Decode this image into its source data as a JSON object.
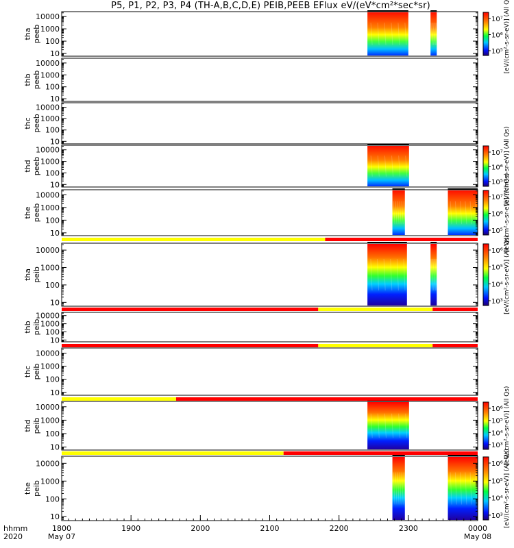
{
  "title": "P5, P1, P2, P3, P4 (TH-A,B,C,D,E) PEIB,PEEB EFlux eV/(eV*cm²*sec*sr)",
  "chart_data": {
    "type": "heatmap",
    "title": "P5, P1, P2, P3, P4 (TH-A,B,C,D,E) PEIB,PEEB EFlux eV/(eV*cm²*sec*sr)",
    "x_axis": {
      "range": [
        "1800",
        "0000"
      ],
      "ticks": [
        "1800",
        "1900",
        "2000",
        "2100",
        "2200",
        "2300",
        "0000"
      ],
      "date_labels": [
        {
          "at": "1800",
          "text": "May 07"
        },
        {
          "at": "0000",
          "text": "May 08"
        }
      ],
      "corner_labels": [
        "hhmm",
        "2020"
      ]
    },
    "y_ticks": [
      "10",
      "100",
      "1000",
      "10000"
    ],
    "y_scale": "log",
    "panels": [
      {
        "label": [
          "tha",
          "peeb"
        ],
        "segments": [
          [
            "2241",
            "2300"
          ],
          [
            "2332",
            "2341"
          ]
        ],
        "colorbar": {
          "ticks": [
            "10⁷",
            "10⁶",
            "10⁵"
          ],
          "label": "[eV/(cm²-s-sr-eV)] (All Qs)"
        }
      },
      {
        "label": [
          "thb",
          "peeb"
        ],
        "segments": []
      },
      {
        "label": [
          "thc",
          "peeb"
        ],
        "segments": []
      },
      {
        "label": [
          "thd",
          "peeb"
        ],
        "segments": [
          [
            "2241",
            "2301"
          ]
        ],
        "colorbar": {
          "ticks": [
            "10⁷",
            "10⁶",
            "10⁵"
          ],
          "label": "[eV/(cm²-s-sr-eV)] (All Qs)"
        }
      },
      {
        "label": [
          "the",
          "peeb"
        ],
        "segments": [
          [
            "2277",
            "2295"
          ],
          [
            "2357",
            "2400"
          ]
        ],
        "colorbar": {
          "ticks": [
            "10⁷",
            "10⁶",
            "10⁵"
          ],
          "label": "[eV/(cm²-s-sr-eV)] (All Qs)"
        }
      },
      {
        "label": [
          "tha",
          "peib"
        ],
        "segments": [
          [
            "2241",
            "2298"
          ],
          [
            "2332",
            "2341"
          ]
        ],
        "colorbar": {
          "ticks": [
            "10⁶",
            "10⁵",
            "10⁴",
            "10³"
          ],
          "label": "[eV/(cm²-s-sr-eV)] (All Qs)"
        }
      },
      {
        "label": [
          "thb",
          "peib"
        ],
        "segments": []
      },
      {
        "label": [
          "thc",
          "peib"
        ],
        "segments": []
      },
      {
        "label": [
          "thd",
          "peib"
        ],
        "segments": [
          [
            "2241",
            "2301"
          ]
        ],
        "colorbar": {
          "ticks": [
            "10⁶",
            "10⁵",
            "10⁴",
            "10³"
          ],
          "label": "[eV/(cm²-s-sr-eV)] (All Qs)"
        }
      },
      {
        "label": [
          "the",
          "peib"
        ],
        "segments": [
          [
            "2277",
            "2295"
          ],
          [
            "2357",
            "2400"
          ]
        ],
        "colorbar": {
          "ticks": [
            "10⁶",
            "10⁵",
            "10⁴",
            "10³"
          ],
          "label": "[eV/(cm²-s-sr-eV)] (All Qs)"
        }
      }
    ],
    "mode_bars": [
      {
        "after_panel": 4,
        "segments": [
          {
            "from": "1800",
            "to": "2180",
            "color": "#ffff00"
          },
          {
            "from": "2180",
            "to": "2400",
            "color": "#ff0000"
          }
        ]
      },
      {
        "after_panel": 5,
        "segments": [
          {
            "from": "1800",
            "to": "2170",
            "color": "#ff0000"
          },
          {
            "from": "2170",
            "to": "2335",
            "color": "#ffff00"
          },
          {
            "from": "2335",
            "to": "2400",
            "color": "#ff0000"
          }
        ]
      },
      {
        "after_panel": 6,
        "segments": [
          {
            "from": "1800",
            "to": "2170",
            "color": "#ff0000"
          },
          {
            "from": "2170",
            "to": "2335",
            "color": "#ffff00"
          },
          {
            "from": "2335",
            "to": "2400",
            "color": "#ff0000"
          }
        ]
      },
      {
        "after_panel": 7,
        "segments": [
          {
            "from": "1800",
            "to": "1965",
            "color": "#ffff00"
          },
          {
            "from": "1965",
            "to": "2400",
            "color": "#ff0000"
          }
        ]
      },
      {
        "after_panel": 8,
        "segments": [
          {
            "from": "1800",
            "to": "2120",
            "color": "#ffff00"
          },
          {
            "from": "2120",
            "to": "2400",
            "color": "#ff0000"
          }
        ]
      }
    ],
    "colors": {
      "background": "#ffffff",
      "axis": "#000000",
      "mode_yellow": "#ffff00",
      "mode_red": "#ff0000"
    }
  }
}
